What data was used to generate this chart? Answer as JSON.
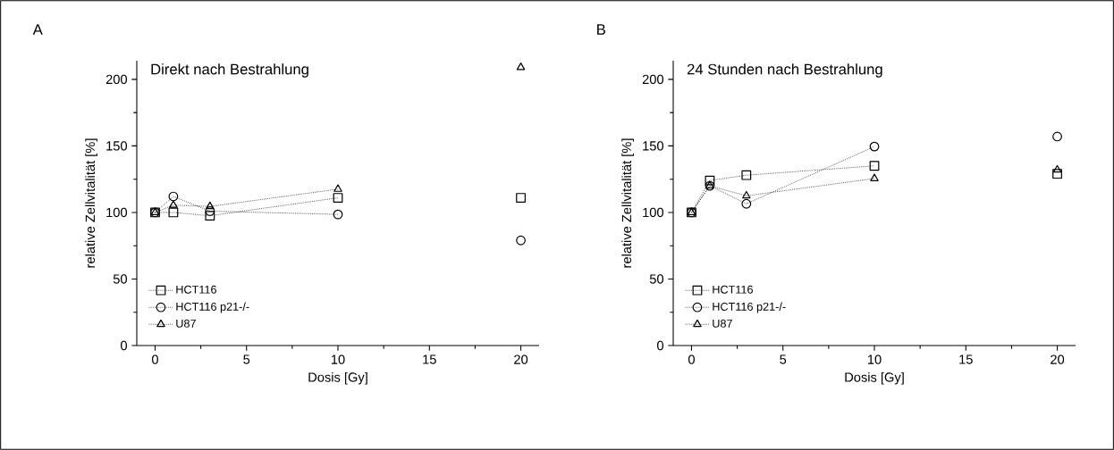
{
  "chart_data": [
    {
      "type": "line",
      "title": "Direkt nach Bestrahlung",
      "xlabel": "Dosis [Gy]",
      "ylabel": "relative Zellvitalität [%]",
      "annotations": [
        "A"
      ],
      "x": [
        0,
        1,
        3,
        10,
        15,
        20
      ],
      "series": [
        {
          "name": "HCT116",
          "color": "#000000",
          "marker": "square",
          "values": [
            100,
            100,
            97.5,
            111,
            null,
            111
          ]
        },
        {
          "name": "HCT116 p21-/-",
          "color": "#000000",
          "marker": "circle",
          "values": [
            100,
            112,
            101,
            98.5,
            null,
            79
          ]
        },
        {
          "name": "U87",
          "color": "#000000",
          "marker": "triangle",
          "values": [
            100,
            105.5,
            104.5,
            117.5,
            null,
            209
          ]
        }
      ],
      "xlim": [
        -1,
        21
      ],
      "ylim": [
        0,
        214
      ],
      "xticks": [
        0,
        5,
        10,
        15,
        20
      ],
      "yticks": [
        0,
        50,
        100,
        150,
        200
      ],
      "legend": "bottom left",
      "line_style": "dotted"
    },
    {
      "type": "line",
      "title": "24 Stunden nach Bestrahlung",
      "xlabel": "Dosis [Gy]",
      "ylabel": "relative Zellvitalität [%]",
      "annotations": [
        "B"
      ],
      "x": [
        0,
        1,
        3,
        10,
        15,
        20
      ],
      "series": [
        {
          "name": "HCT116",
          "color": "#000000",
          "marker": "square",
          "values": [
            100,
            124,
            128,
            135,
            null,
            129
          ]
        },
        {
          "name": "HCT116 p21-/-",
          "color": "#000000",
          "marker": "circle",
          "values": [
            100,
            120,
            106.5,
            149.5,
            null,
            157
          ]
        },
        {
          "name": "U87",
          "color": "#000000",
          "marker": "triangle",
          "values": [
            100,
            120,
            112.5,
            125.5,
            null,
            132
          ]
        }
      ],
      "xlim": [
        -1,
        21
      ],
      "ylim": [
        0,
        214
      ],
      "xticks": [
        0,
        5,
        10,
        15,
        20
      ],
      "yticks": [
        0,
        50,
        100,
        150,
        200
      ],
      "legend": "bottom left",
      "line_style": "dotted"
    }
  ]
}
